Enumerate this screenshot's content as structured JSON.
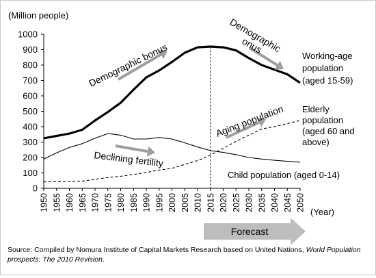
{
  "chart_data": {
    "type": "line",
    "ylabel": "(Million people)",
    "xlabel": "(Year)",
    "ylim": [
      0,
      1000
    ],
    "yticks": [
      0,
      100,
      200,
      300,
      400,
      500,
      600,
      700,
      800,
      900,
      1000
    ],
    "x": [
      1950,
      1955,
      1960,
      1965,
      1970,
      1975,
      1980,
      1985,
      1990,
      1995,
      2000,
      2005,
      2010,
      2015,
      2020,
      2025,
      2030,
      2035,
      2040,
      2045,
      2050
    ],
    "forecast_start": 2015,
    "series": [
      {
        "name": "Working-age population (aged 15-59)",
        "label_lines": [
          "Working-age",
          "population",
          "(aged 15-59)"
        ],
        "style": "thick",
        "values": [
          325,
          340,
          355,
          380,
          440,
          495,
          555,
          640,
          720,
          765,
          820,
          880,
          915,
          920,
          915,
          895,
          845,
          800,
          770,
          740,
          685
        ]
      },
      {
        "name": "Elderly population (aged 60 and above)",
        "label_lines": [
          "Elderly",
          "population",
          "(aged 60 and",
          "above)"
        ],
        "style": "dashed",
        "values": [
          42,
          43,
          43,
          46,
          58,
          70,
          78,
          90,
          103,
          118,
          130,
          155,
          180,
          215,
          260,
          305,
          345,
          385,
          400,
          420,
          440
        ]
      },
      {
        "name": "Child population (aged 0-14)",
        "label_lines": [
          "Child population (aged 0-14)"
        ],
        "style": "thin",
        "values": [
          190,
          230,
          265,
          290,
          325,
          355,
          345,
          320,
          320,
          330,
          320,
          295,
          268,
          245,
          233,
          218,
          200,
          190,
          182,
          175,
          170
        ]
      }
    ],
    "annotations": {
      "demographic_bonus": "Demographic bonus",
      "demographic_onus_lines": [
        "Demographic",
        "onus"
      ],
      "aging_population": "Aging population",
      "declining_fertility": "Declining fertility",
      "forecast": "Forecast"
    },
    "arrow_color": "#9e9e9e"
  },
  "source": {
    "prefix": "Source: Compiled by Nomura Institute of Capital Markets Research based on United Nations,",
    "title_italic": "World Population prospects: The 2010 Revision",
    "suffix": "."
  }
}
